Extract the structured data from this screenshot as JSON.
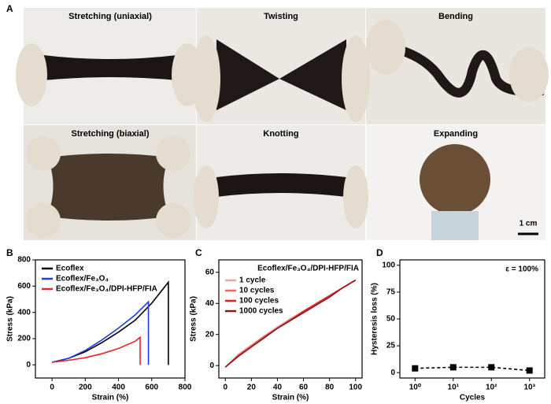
{
  "photos": {
    "panel": "A",
    "items": [
      {
        "label": "Stretching (uniaxial)"
      },
      {
        "label": "Twisting"
      },
      {
        "label": "Bending"
      },
      {
        "label": "Stretching (biaxial)"
      },
      {
        "label": "Knotting"
      },
      {
        "label": "Expanding"
      }
    ],
    "scale_bar": "1 cm"
  },
  "chart_data": [
    {
      "type": "line",
      "panel": "B",
      "x_label": "Strain (%)",
      "y_label": "Stress (kPa)",
      "xlim": [
        -100,
        800
      ],
      "xticks": [
        0,
        200,
        400,
        600,
        800
      ],
      "ylim": [
        -100,
        800
      ],
      "yticks": [
        0,
        200,
        400,
        600,
        800
      ],
      "legend": "upper-left",
      "series": [
        {
          "name": "Ecoflex",
          "color": "#000000",
          "x": [
            0,
            100,
            200,
            300,
            400,
            500,
            600,
            700,
            700
          ],
          "values": [
            20,
            50,
            100,
            170,
            250,
            340,
            470,
            630,
            0
          ]
        },
        {
          "name": "Ecoflex/Fe₃O₄",
          "color": "#1f3ee0",
          "x": [
            0,
            100,
            200,
            300,
            400,
            500,
            580,
            580
          ],
          "values": [
            20,
            50,
            110,
            190,
            280,
            380,
            480,
            0
          ]
        },
        {
          "name": "Ecoflex/Fe₃O₄/DPI-HFP/FIA",
          "color": "#e8262a",
          "x": [
            0,
            100,
            200,
            300,
            400,
            500,
            530,
            530
          ],
          "values": [
            20,
            35,
            55,
            85,
            125,
            180,
            210,
            0
          ]
        }
      ]
    },
    {
      "type": "line",
      "panel": "C",
      "x_label": "Strain (%)",
      "y_label": "Stress (kPa)",
      "xlim": [
        -5,
        105
      ],
      "xticks": [
        0,
        20,
        40,
        60,
        80,
        100
      ],
      "ylim": [
        -8,
        68
      ],
      "yticks": [
        0,
        20,
        40,
        60
      ],
      "legend": "upper-left",
      "legend_title": "Ecoflex/Fe₃O₄/DPI-HFP/FIA",
      "x": [
        0,
        10,
        20,
        30,
        40,
        50,
        60,
        70,
        80,
        90,
        100
      ],
      "series": [
        {
          "name": "1 cycle",
          "color": "#f4a3a3",
          "values": [
            -1,
            7,
            13,
            19,
            25,
            30,
            35,
            40,
            45,
            50,
            55
          ]
        },
        {
          "name": "10 cycles",
          "color": "#ee6767",
          "values": [
            -1,
            7,
            13,
            19,
            24,
            30,
            35,
            40,
            45,
            50,
            55
          ]
        },
        {
          "name": "100 cycles",
          "color": "#d92727",
          "values": [
            -1,
            6,
            12,
            18,
            24,
            29,
            35,
            40,
            45,
            50,
            55
          ]
        },
        {
          "name": "1000 cycles",
          "color": "#8c1616",
          "values": [
            -1,
            6,
            12,
            18,
            24,
            29,
            34,
            39,
            44,
            50,
            55
          ]
        }
      ]
    },
    {
      "type": "line",
      "panel": "D",
      "x_label": "Cycles",
      "y_label": "Hysteresis loss (%)",
      "log_x": true,
      "xlim": [
        0.4,
        2500
      ],
      "xticks": [
        {
          "value": 1,
          "label": "10⁰"
        },
        {
          "value": 10,
          "label": "10¹"
        },
        {
          "value": 100,
          "label": "10²"
        },
        {
          "value": 1000,
          "label": "10³"
        }
      ],
      "ylim": [
        -5,
        105
      ],
      "yticks": [
        0,
        25,
        50,
        75,
        100
      ],
      "annotation": "ε = 100%",
      "line_style": "dashed",
      "marker": "square",
      "x": [
        1,
        10,
        100,
        1000
      ],
      "series": [
        {
          "color": "#000000",
          "values": [
            4,
            5,
            5,
            2
          ]
        }
      ]
    }
  ]
}
